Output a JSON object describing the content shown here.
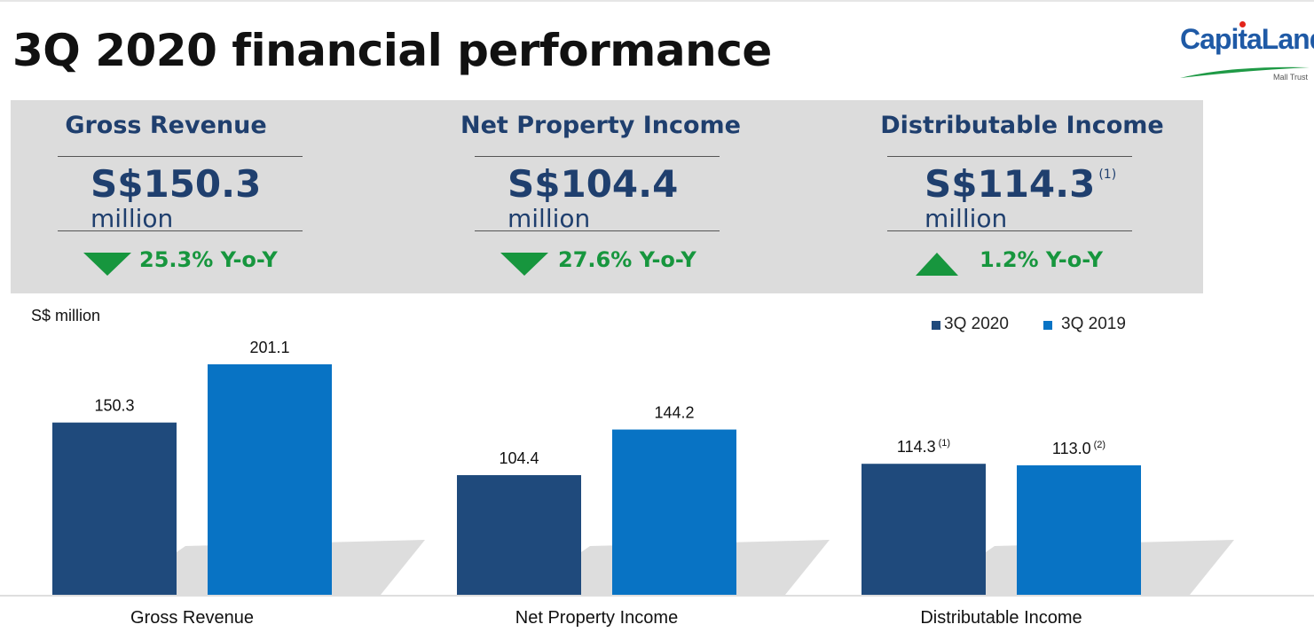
{
  "title": "3Q 2020 financial performance",
  "logo": {
    "brand": "CapitaLand",
    "sub": "Mall Trust"
  },
  "colors": {
    "series_2020": "#1f4a7c",
    "series_2019": "#0873c4",
    "kpi_text": "#1f3f6e",
    "change_green": "#17963e",
    "panel_bg": "#dcdcdc"
  },
  "kpis": [
    {
      "title": "Gross Revenue",
      "value": "S$150.3",
      "note": "",
      "unit": "million",
      "direction": "down",
      "change": "25.3% Y-o-Y"
    },
    {
      "title": "Net Property Income",
      "value": "S$104.4",
      "note": "",
      "unit": "million",
      "direction": "down",
      "change": "27.6% Y-o-Y"
    },
    {
      "title": "Distributable Income",
      "value": "S$114.3",
      "note": "(1)",
      "unit": "million",
      "direction": "up",
      "change": "1.2% Y-o-Y"
    }
  ],
  "chart_data": {
    "type": "bar",
    "ylabel": "S$ million",
    "categories": [
      "Gross Revenue",
      "Net Property Income",
      "Distributable Income"
    ],
    "series": [
      {
        "name": "3Q 2020",
        "values": [
          150.3,
          104.4,
          114.3
        ],
        "labels": [
          "150.3",
          "104.4",
          "114.3"
        ],
        "notes": [
          "",
          "",
          "(1)"
        ]
      },
      {
        "name": "3Q 2019",
        "values": [
          201.1,
          144.2,
          113.0
        ],
        "labels": [
          "201.1",
          "144.2",
          "113.0"
        ],
        "notes": [
          "",
          "",
          "(2)"
        ]
      }
    ],
    "ylim": [
      0,
      201.1
    ],
    "legend": "top-right",
    "grid": false
  }
}
